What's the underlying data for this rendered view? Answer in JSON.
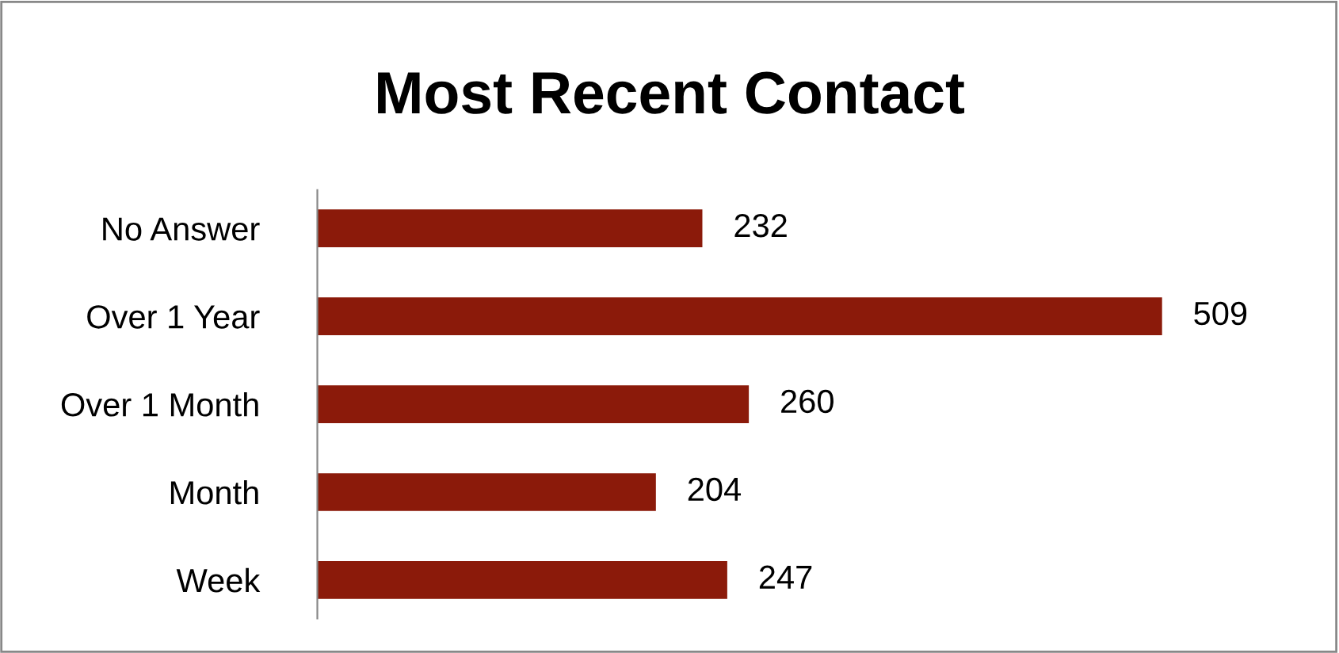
{
  "chart_data": {
    "type": "bar",
    "orientation": "horizontal",
    "title": "Most Recent Contact",
    "categories": [
      "No Answer",
      "Over 1 Year",
      "Over 1 Month",
      "Month",
      "Week"
    ],
    "values": [
      232,
      509,
      260,
      204,
      247
    ],
    "color": "#8b1a0a",
    "data_labels": true,
    "grid": false,
    "legend": false
  }
}
